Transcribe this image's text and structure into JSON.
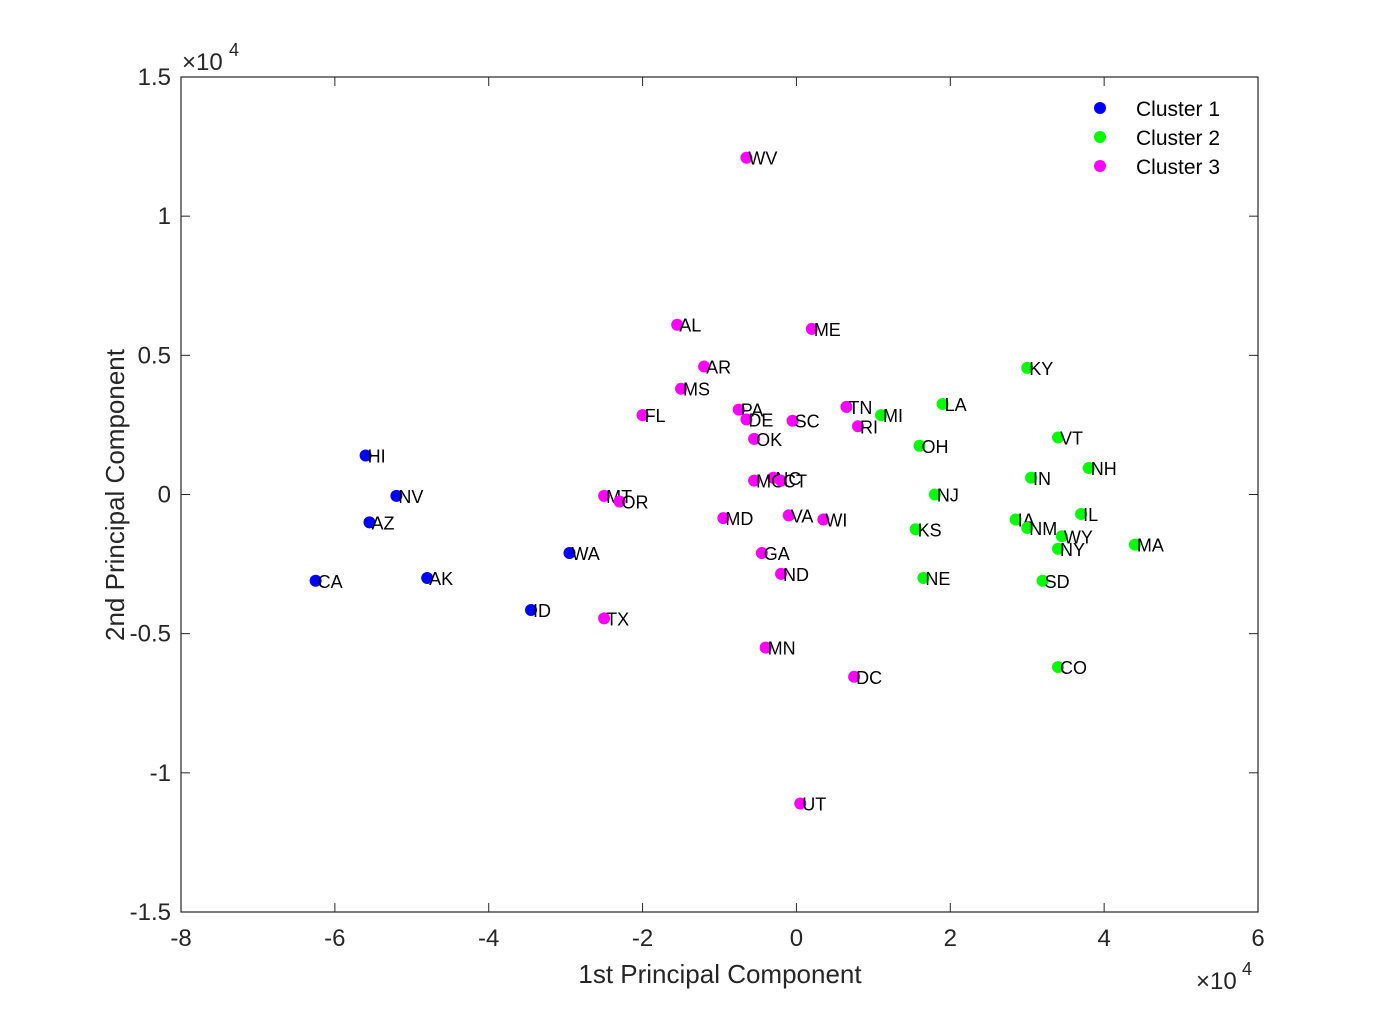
{
  "chart_data": {
    "type": "scatter",
    "title": "",
    "xlabel": "1st Principal Component",
    "ylabel": "2nd Principal Component",
    "x_exponent_label": "×10",
    "x_exponent_power": "4",
    "y_exponent_label": "×10",
    "y_exponent_power": "4",
    "xlim": [
      -80000,
      60000
    ],
    "ylim": [
      -15000,
      15000
    ],
    "x_ticks": [
      -80000,
      -60000,
      -40000,
      -20000,
      0,
      20000,
      40000,
      60000
    ],
    "x_tick_labels": [
      "-8",
      "-6",
      "-4",
      "-2",
      "0",
      "2",
      "4",
      "6"
    ],
    "y_ticks": [
      -15000,
      -10000,
      -5000,
      0,
      5000,
      10000,
      15000
    ],
    "y_tick_labels": [
      "-1.5",
      "-1",
      "-0.5",
      "0",
      "0.5",
      "1",
      "1.5"
    ],
    "grid": false,
    "legend_position": "top-right",
    "series": [
      {
        "name": "Cluster 1",
        "color": "#0000ff",
        "points": [
          {
            "label": "HI",
            "x": -56000,
            "y": 1400
          },
          {
            "label": "NV",
            "x": -52000,
            "y": -50
          },
          {
            "label": "AZ",
            "x": -55500,
            "y": -1000
          },
          {
            "label": "CA",
            "x": -62500,
            "y": -3100
          },
          {
            "label": "AK",
            "x": -48000,
            "y": -3000
          },
          {
            "label": "WA",
            "x": -29500,
            "y": -2100
          },
          {
            "label": "ID",
            "x": -34500,
            "y": -4150
          }
        ]
      },
      {
        "name": "Cluster 2",
        "color": "#00ff00",
        "points": [
          {
            "label": "KY",
            "x": 30000,
            "y": 4550
          },
          {
            "label": "LA",
            "x": 19000,
            "y": 3250
          },
          {
            "label": "MI",
            "x": 11000,
            "y": 2850
          },
          {
            "label": "VT",
            "x": 34000,
            "y": 2050
          },
          {
            "label": "OH",
            "x": 16000,
            "y": 1750
          },
          {
            "label": "NH",
            "x": 38000,
            "y": 950
          },
          {
            "label": "IN",
            "x": 30500,
            "y": 600
          },
          {
            "label": "NJ",
            "x": 18000,
            "y": 0
          },
          {
            "label": "IL",
            "x": 37000,
            "y": -700
          },
          {
            "label": "IA",
            "x": 28500,
            "y": -900
          },
          {
            "label": "KS",
            "x": 15500,
            "y": -1250
          },
          {
            "label": "NM",
            "x": 30000,
            "y": -1200
          },
          {
            "label": "WY",
            "x": 34500,
            "y": -1500
          },
          {
            "label": "MA",
            "x": 44000,
            "y": -1800
          },
          {
            "label": "NY",
            "x": 34000,
            "y": -1950
          },
          {
            "label": "NE",
            "x": 16500,
            "y": -3000
          },
          {
            "label": "SD",
            "x": 32000,
            "y": -3100
          },
          {
            "label": "CO",
            "x": 34000,
            "y": -6200
          }
        ]
      },
      {
        "name": "Cluster 3",
        "color": "#ff00ff",
        "points": [
          {
            "label": "WV",
            "x": -6500,
            "y": 12100
          },
          {
            "label": "AL",
            "x": -15500,
            "y": 6100
          },
          {
            "label": "ME",
            "x": 2000,
            "y": 5950
          },
          {
            "label": "AR",
            "x": -12000,
            "y": 4600
          },
          {
            "label": "MS",
            "x": -15000,
            "y": 3800
          },
          {
            "label": "PA",
            "x": -7500,
            "y": 3050
          },
          {
            "label": "FL",
            "x": -20000,
            "y": 2850
          },
          {
            "label": "DE",
            "x": -6500,
            "y": 2700
          },
          {
            "label": "SC",
            "x": -500,
            "y": 2650
          },
          {
            "label": "TN",
            "x": 6500,
            "y": 3150
          },
          {
            "label": "RI",
            "x": 8000,
            "y": 2450
          },
          {
            "label": "OK",
            "x": -5500,
            "y": 2000
          },
          {
            "label": "NC",
            "x": -3000,
            "y": 600
          },
          {
            "label": "MO",
            "x": -5500,
            "y": 500
          },
          {
            "label": "CT",
            "x": -2000,
            "y": 500
          },
          {
            "label": "MT",
            "x": -25000,
            "y": -50
          },
          {
            "label": "OR",
            "x": -23000,
            "y": -250
          },
          {
            "label": "MD",
            "x": -9500,
            "y": -850
          },
          {
            "label": "VA",
            "x": -1000,
            "y": -750
          },
          {
            "label": "WI",
            "x": 3500,
            "y": -900
          },
          {
            "label": "GA",
            "x": -4500,
            "y": -2100
          },
          {
            "label": "ND",
            "x": -2000,
            "y": -2850
          },
          {
            "label": "TX",
            "x": -25000,
            "y": -4450
          },
          {
            "label": "MN",
            "x": -4000,
            "y": -5500
          },
          {
            "label": "DC",
            "x": 7500,
            "y": -6550
          },
          {
            "label": "UT",
            "x": 500,
            "y": -11100
          }
        ]
      }
    ]
  }
}
